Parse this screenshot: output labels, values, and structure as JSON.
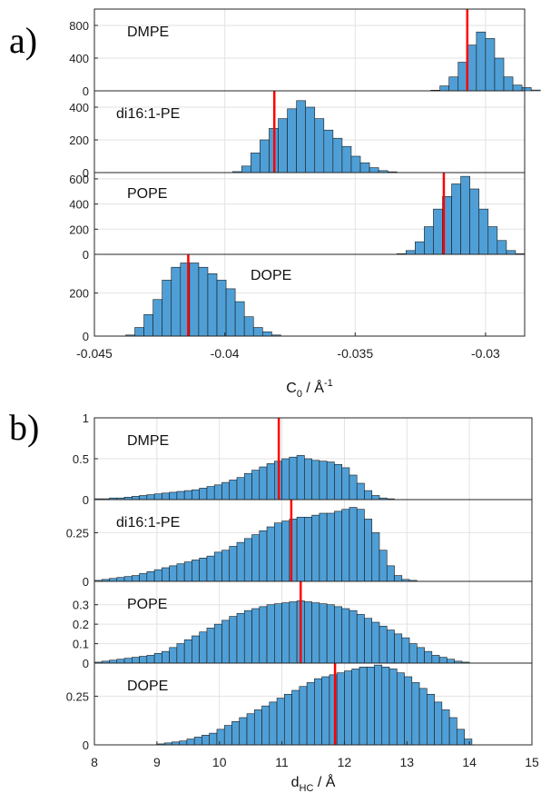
{
  "panels": [
    {
      "letter": "a)"
    },
    {
      "letter": "b)"
    }
  ],
  "chart_data": [
    {
      "type": "bar",
      "panel": "a)",
      "xlim": [
        -0.045,
        -0.0285
      ],
      "xticks": [
        -0.045,
        -0.04,
        -0.035,
        -0.03
      ],
      "xtick_labels": [
        "-0.045",
        "-0.04",
        "-0.035",
        "-0.03"
      ],
      "xlabel": {
        "main": "C",
        "sub": "0",
        "mid": " / Å",
        "sup": "-1"
      },
      "grid": true,
      "bar_color": "#4f9fd6",
      "marker_color": "#ff0000",
      "subplots": [
        {
          "label": "DMPE",
          "ylim": [
            0,
            1000
          ],
          "yticks": [
            0,
            400,
            800
          ],
          "marker": -0.0307,
          "bin_width": 0.00035,
          "bin_start": -0.0321,
          "counts": [
            8,
            60,
            170,
            350,
            560,
            720,
            640,
            400,
            170,
            70,
            40,
            10
          ]
        },
        {
          "label": "di16:1-PE",
          "ylim": [
            0,
            500
          ],
          "yticks": [
            0,
            200,
            400
          ],
          "marker": -0.0381,
          "bin_width": 0.00035,
          "bin_start": -0.0397,
          "counts": [
            6,
            40,
            120,
            200,
            270,
            330,
            390,
            440,
            400,
            330,
            260,
            210,
            160,
            100,
            60,
            30,
            12,
            5
          ]
        },
        {
          "label": "POPE",
          "ylim": [
            0,
            650
          ],
          "yticks": [
            0,
            200,
            400,
            600
          ],
          "marker": -0.0316,
          "bin_width": 0.00035,
          "bin_start": -0.0334,
          "counts": [
            5,
            30,
            100,
            220,
            360,
            460,
            560,
            620,
            520,
            360,
            220,
            110,
            30,
            5
          ]
        },
        {
          "label": "DOPE",
          "ylim": [
            0,
            380
          ],
          "yticks": [
            0,
            200
          ],
          "marker": -0.0414,
          "bin_width": 0.00035,
          "bin_start": -0.0438,
          "counts": [
            5,
            40,
            100,
            170,
            260,
            320,
            340,
            340,
            320,
            290,
            260,
            220,
            160,
            90,
            40,
            20,
            5
          ]
        }
      ]
    },
    {
      "type": "bar",
      "panel": "b)",
      "xlim": [
        8,
        15
      ],
      "xticks": [
        8,
        9,
        10,
        11,
        12,
        13,
        14,
        15
      ],
      "xtick_labels": [
        "8",
        "9",
        "10",
        "11",
        "12",
        "13",
        "14",
        "15"
      ],
      "xlabel": {
        "main": "d",
        "sub": "HC",
        "mid": " / Å",
        "sup": ""
      },
      "grid": true,
      "bar_color": "#4f9fd6",
      "marker_color": "#ff0000",
      "subplots": [
        {
          "label": "DMPE",
          "ylim": [
            0,
            1
          ],
          "yticks": [
            0,
            0.5,
            1
          ],
          "ytick_labels": [
            "0",
            "0.5",
            "1"
          ],
          "marker": 10.95,
          "bin_width": 0.12,
          "bin_start": 8.0,
          "counts": [
            0.01,
            0.01,
            0.02,
            0.02,
            0.03,
            0.04,
            0.05,
            0.06,
            0.07,
            0.08,
            0.09,
            0.1,
            0.11,
            0.12,
            0.14,
            0.16,
            0.18,
            0.21,
            0.24,
            0.27,
            0.32,
            0.36,
            0.4,
            0.44,
            0.47,
            0.5,
            0.52,
            0.54,
            0.5,
            0.48,
            0.47,
            0.46,
            0.43,
            0.39,
            0.3,
            0.2,
            0.11,
            0.05,
            0.02,
            0.01
          ]
        },
        {
          "label": "di16:1-PE",
          "ylim": [
            0,
            0.42
          ],
          "yticks": [
            0,
            0.25
          ],
          "ytick_labels": [
            "0",
            "0.25"
          ],
          "marker": 11.15,
          "bin_width": 0.12,
          "bin_start": 8.0,
          "counts": [
            0.005,
            0.01,
            0.015,
            0.02,
            0.025,
            0.03,
            0.04,
            0.05,
            0.06,
            0.07,
            0.08,
            0.09,
            0.1,
            0.11,
            0.12,
            0.13,
            0.15,
            0.16,
            0.18,
            0.2,
            0.22,
            0.24,
            0.26,
            0.28,
            0.3,
            0.31,
            0.32,
            0.33,
            0.33,
            0.34,
            0.35,
            0.35,
            0.36,
            0.37,
            0.38,
            0.37,
            0.32,
            0.25,
            0.16,
            0.08,
            0.03,
            0.01,
            0.005
          ]
        },
        {
          "label": "POPE",
          "ylim": [
            0,
            0.42
          ],
          "yticks": [
            0,
            0.1,
            0.2,
            0.3
          ],
          "ytick_labels": [
            "0",
            "0.1",
            "0.2",
            "0.3"
          ],
          "marker": 11.3,
          "bin_width": 0.12,
          "bin_start": 8.0,
          "counts": [
            0.005,
            0.01,
            0.015,
            0.02,
            0.025,
            0.03,
            0.035,
            0.04,
            0.05,
            0.06,
            0.08,
            0.1,
            0.12,
            0.14,
            0.16,
            0.18,
            0.2,
            0.22,
            0.24,
            0.255,
            0.27,
            0.28,
            0.29,
            0.3,
            0.305,
            0.31,
            0.315,
            0.32,
            0.315,
            0.31,
            0.305,
            0.3,
            0.29,
            0.28,
            0.27,
            0.25,
            0.23,
            0.21,
            0.19,
            0.17,
            0.15,
            0.13,
            0.1,
            0.08,
            0.06,
            0.04,
            0.03,
            0.02,
            0.01,
            0.005
          ]
        },
        {
          "label": "DOPE",
          "ylim": [
            0,
            0.42
          ],
          "yticks": [
            0,
            0.25
          ],
          "ytick_labels": [
            "0",
            "0.25"
          ],
          "marker": 11.85,
          "bin_width": 0.12,
          "bin_start": 9.0,
          "counts": [
            0.005,
            0.01,
            0.015,
            0.02,
            0.03,
            0.04,
            0.05,
            0.06,
            0.08,
            0.1,
            0.12,
            0.14,
            0.16,
            0.18,
            0.2,
            0.22,
            0.24,
            0.26,
            0.28,
            0.3,
            0.32,
            0.34,
            0.35,
            0.36,
            0.37,
            0.38,
            0.39,
            0.4,
            0.4,
            0.41,
            0.4,
            0.39,
            0.37,
            0.35,
            0.32,
            0.29,
            0.26,
            0.22,
            0.18,
            0.14,
            0.08,
            0.03
          ]
        }
      ]
    }
  ]
}
